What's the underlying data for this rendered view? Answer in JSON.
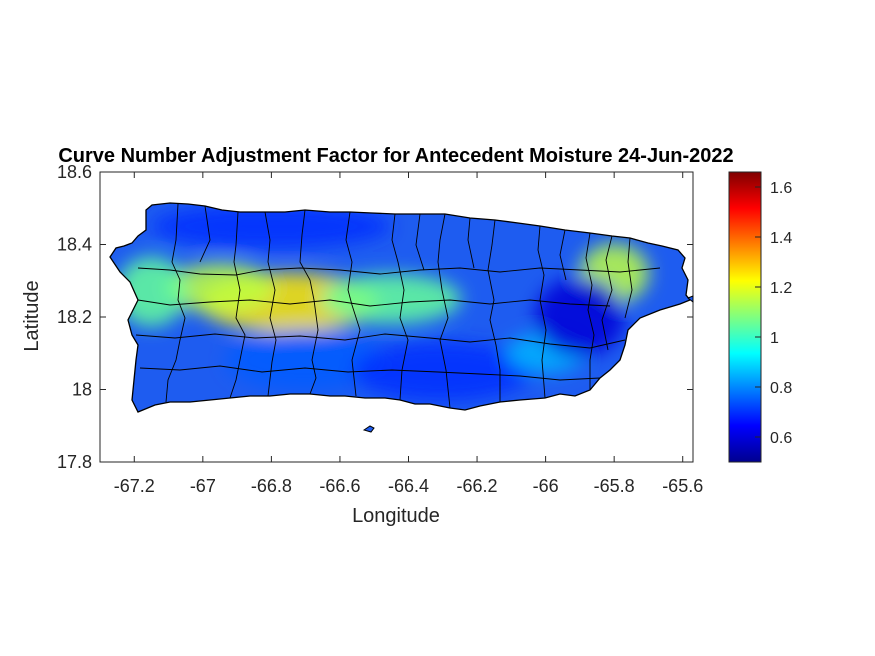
{
  "chart_data": {
    "type": "heatmap",
    "title": "Curve Number Adjustment Factor for Antecedent Moisture 24-Jun-2022",
    "xlabel": "Longitude",
    "ylabel": "Latitude",
    "xlim": [
      -67.3,
      -65.57
    ],
    "ylim": [
      17.8,
      18.6
    ],
    "xticks": [
      -67.2,
      -67,
      -66.8,
      -66.6,
      -66.4,
      -66.2,
      -66,
      -65.8,
      -65.6
    ],
    "xtick_labels": [
      "-67.2",
      "-67",
      "-66.8",
      "-66.6",
      "-66.4",
      "-66.2",
      "-66",
      "-65.8",
      "-65.6"
    ],
    "yticks": [
      17.8,
      18,
      18.2,
      18.4,
      18.6
    ],
    "ytick_labels": [
      "17.8",
      "18",
      "18.2",
      "18.4",
      "18.6"
    ],
    "colorbar": {
      "colormap": "jet",
      "clim": [
        0.5,
        1.66
      ],
      "ticks": [
        0.6,
        0.8,
        1,
        1.2,
        1.4,
        1.6
      ],
      "tick_labels": [
        "0.6",
        "0.8",
        "1",
        "1.2",
        "1.4",
        "1.6"
      ]
    },
    "grid": false,
    "colors": {
      "axes": "#262626",
      "background": "#ffffff",
      "boundary": "#000000"
    },
    "field_description_values": [
      {
        "lon": -66.75,
        "lat": 18.24,
        "value": 1.25
      },
      {
        "lon": -66.95,
        "lat": 18.28,
        "value": 1.15
      },
      {
        "lon": -67.15,
        "lat": 18.27,
        "value": 1.05
      },
      {
        "lon": -66.45,
        "lat": 18.25,
        "value": 1.05
      },
      {
        "lon": -65.8,
        "lat": 18.32,
        "value": 1.15
      },
      {
        "lon": -66.7,
        "lat": 18.08,
        "value": 0.75
      },
      {
        "lon": -66.3,
        "lat": 18.05,
        "value": 0.7
      },
      {
        "lon": -66.0,
        "lat": 18.1,
        "value": 0.85
      },
      {
        "lon": -65.9,
        "lat": 18.2,
        "value": 0.6
      },
      {
        "lon": -66.8,
        "lat": 18.45,
        "value": 0.7
      }
    ]
  }
}
